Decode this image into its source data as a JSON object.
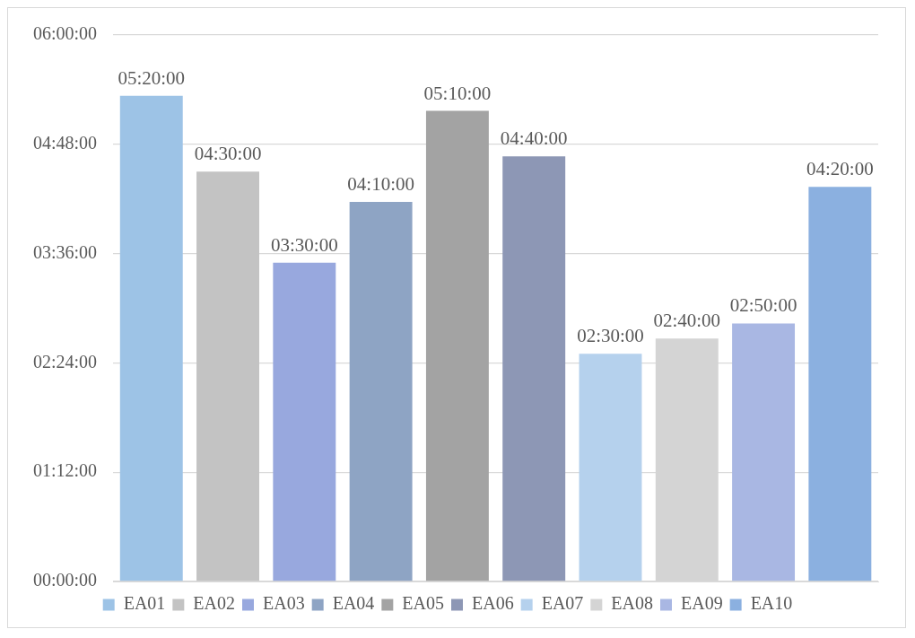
{
  "chart_data": {
    "type": "bar",
    "categories": [
      null
    ],
    "series": [
      {
        "name": "EA01",
        "color": "#9dc3e6",
        "values": [
          5.3333
        ],
        "value_labels": [
          "05:20:00"
        ]
      },
      {
        "name": "EA02",
        "color": "#c3c3c3",
        "values": [
          4.5
        ],
        "value_labels": [
          "04:30:00"
        ]
      },
      {
        "name": "EA03",
        "color": "#98a8de",
        "values": [
          3.5
        ],
        "value_labels": [
          "03:30:00"
        ]
      },
      {
        "name": "EA04",
        "color": "#8ea4c4",
        "values": [
          4.1667
        ],
        "value_labels": [
          "04:10:00"
        ]
      },
      {
        "name": "EA05",
        "color": "#a3a3a3",
        "values": [
          5.1667
        ],
        "value_labels": [
          "05:10:00"
        ]
      },
      {
        "name": "EA06",
        "color": "#8d97b5",
        "values": [
          4.6667
        ],
        "value_labels": [
          "04:40:00"
        ]
      },
      {
        "name": "EA07",
        "color": "#b5d1ed",
        "values": [
          2.5
        ],
        "value_labels": [
          "02:30:00"
        ]
      },
      {
        "name": "EA08",
        "color": "#d4d4d4",
        "values": [
          2.6667
        ],
        "value_labels": [
          "02:40:00"
        ]
      },
      {
        "name": "EA09",
        "color": "#a9b7e3",
        "values": [
          2.8333
        ],
        "value_labels": [
          "02:50:00"
        ]
      },
      {
        "name": "EA10",
        "color": "#8bb0e0",
        "values": [
          4.3333
        ],
        "value_labels": [
          "04:20:00"
        ]
      }
    ],
    "ylim": [
      0,
      6
    ],
    "yticks": [
      {
        "value": 0,
        "label": "00:00:00"
      },
      {
        "value": 1.2,
        "label": "01:12:00"
      },
      {
        "value": 2.4,
        "label": "02:24:00"
      },
      {
        "value": 3.6,
        "label": "03:36:00"
      },
      {
        "value": 4.8,
        "label": "04:48:00"
      },
      {
        "value": 6,
        "label": "06:00:00"
      }
    ],
    "grid": "y",
    "legend": "bottom"
  }
}
